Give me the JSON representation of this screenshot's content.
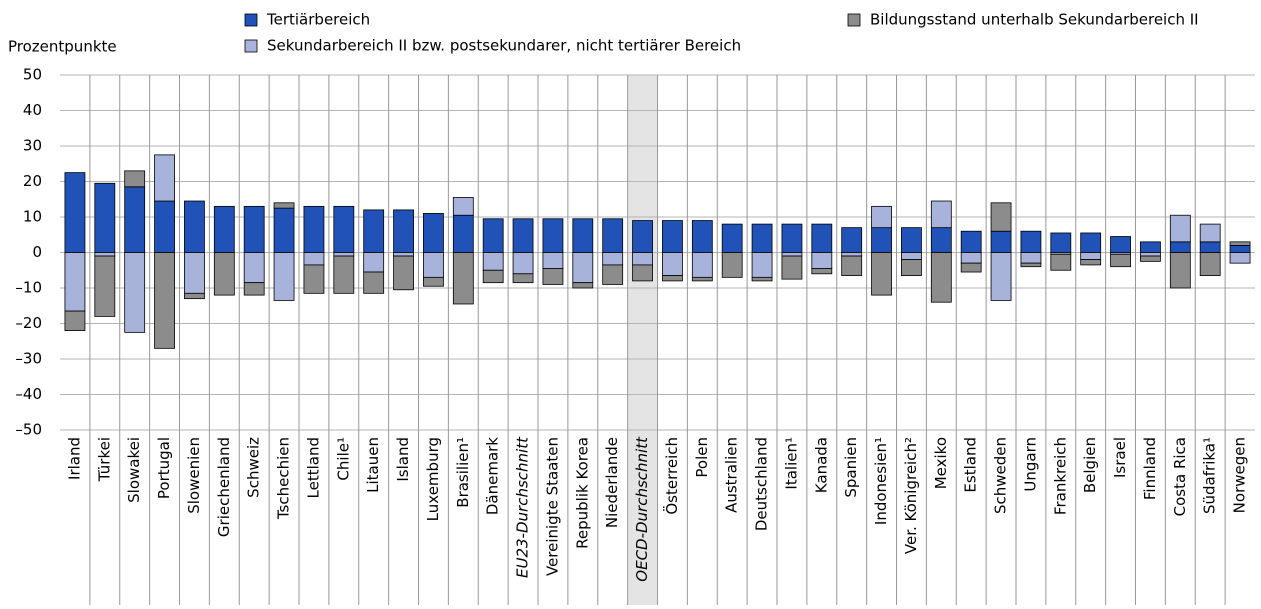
{
  "chart_data": {
    "type": "stacked_bar",
    "ylabel": "Prozentpunkte",
    "categories": [
      "Irland",
      "Türkei",
      "Slowakei",
      "Portugal",
      "Slowenien",
      "Griechenland",
      "Schweiz",
      "Tschechien",
      "Lettland",
      "Chile¹",
      "Litauen",
      "Island",
      "Luxemburg",
      "Brasilien¹",
      "Dänemark",
      "EU23-Durchschnitt",
      "Vereinigte Staaten",
      "Republik Korea",
      "Niederlande",
      "OECD-Durchschnitt",
      "Österreich",
      "Polen",
      "Australien",
      "Deutschland",
      "Italien¹",
      "Kanada",
      "Spanien",
      "Indonesien¹",
      "Ver. Königreich²",
      "Mexiko",
      "Estland",
      "Schweden",
      "Ungarn",
      "Frankreich",
      "Belgien",
      "Israel",
      "Finnland",
      "Costa Rica",
      "Südafrika¹",
      "Norwegen"
    ],
    "series": [
      {
        "name": "Tertiärbereich",
        "color": "#2152b8",
        "values": [
          22.5,
          19.5,
          18.5,
          14.5,
          14.5,
          13,
          13,
          12.5,
          13,
          13,
          12,
          12,
          11,
          10.5,
          9.5,
          9.5,
          9.5,
          9.5,
          9.5,
          9,
          9,
          9,
          8,
          8,
          8,
          8,
          7,
          7,
          7,
          7,
          6,
          6,
          6,
          5.5,
          5.5,
          4.5,
          3,
          3,
          3,
          2
        ]
      },
      {
        "name": "Sekundarbereich II bzw. postsekundarer, nicht tertiärer Bereich",
        "color": "#a8b3dc",
        "values": [
          -16.5,
          -1,
          -22.5,
          13,
          -11.5,
          0,
          -8.5,
          -13.5,
          -3.5,
          -1,
          -5.5,
          -1,
          -7,
          5,
          -5,
          -6,
          -4.5,
          -8.5,
          -3.5,
          -3.5,
          -6.5,
          -7,
          0,
          -7,
          -1,
          -4.5,
          -1,
          6,
          -2,
          7.5,
          -3,
          -13.5,
          -3,
          -0.5,
          -2,
          -0.5,
          -1,
          7.5,
          5,
          -3
        ]
      },
      {
        "name": "Bildungsstand unterhalb Sekundarbereich II",
        "color": "#8c8c8c",
        "values": [
          -5.5,
          -17,
          4.5,
          -27,
          -1.5,
          -12,
          -3.5,
          1.5,
          -8,
          -10.5,
          -6,
          -9.5,
          -2.5,
          -14.5,
          -3.5,
          -2.5,
          -4.5,
          -1.5,
          -5.5,
          -4.5,
          -1.5,
          -1,
          -7,
          -1,
          -6.5,
          -1.5,
          -5.5,
          -12,
          -4.5,
          -14,
          -2.5,
          8,
          -1,
          -4.5,
          -1.5,
          -3.5,
          -1.5,
          -10,
          -6.5,
          1
        ]
      }
    ],
    "ylim": [
      -50,
      50
    ],
    "yticks": [
      {
        "value": -50,
        "label": "–50"
      },
      {
        "value": -40,
        "label": "–40"
      },
      {
        "value": -30,
        "label": "–30"
      },
      {
        "value": -20,
        "label": "–20"
      },
      {
        "value": -10,
        "label": "–10"
      },
      0,
      10,
      20,
      30,
      40,
      50
    ],
    "grid": true,
    "italic_categories": [
      15,
      19
    ],
    "highlight_categories": [
      19
    ]
  }
}
